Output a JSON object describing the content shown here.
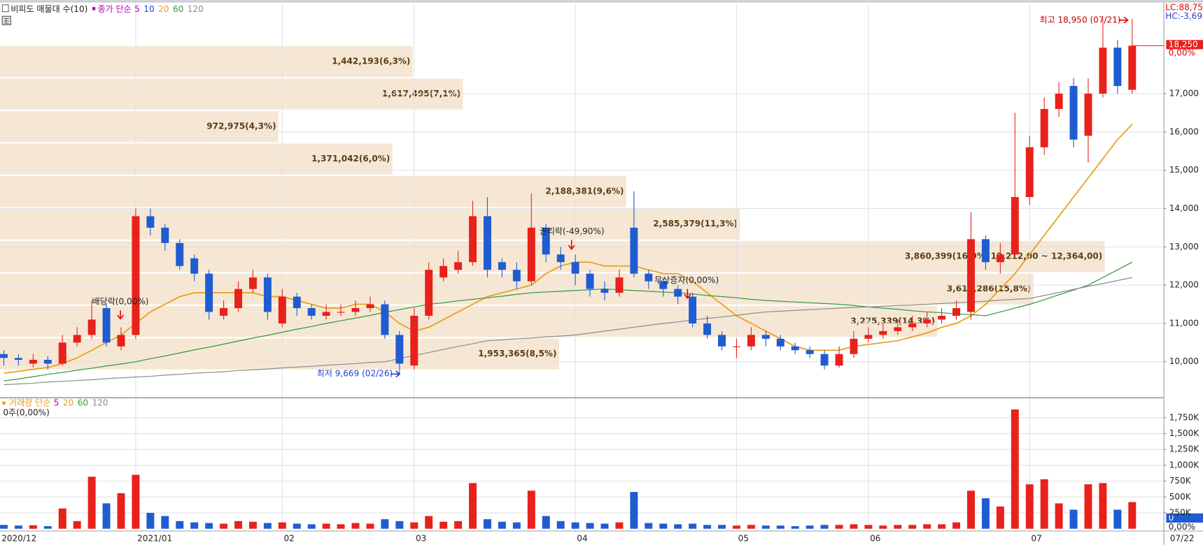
{
  "chart_data": {
    "type": "candlestick",
    "title": "비피도 매물대 수(10)",
    "legend_prefix": "종가 단순",
    "ma_legend": [
      {
        "name": "5",
        "color": "#b400b4"
      },
      {
        "name": "10",
        "color": "#1f3fd1"
      }
    ],
    "categories": [
      "2020/12",
      null,
      null,
      null,
      null,
      null,
      null,
      null,
      null,
      "2021/01",
      null,
      null,
      null,
      null,
      null,
      null,
      null,
      null,
      null,
      "02",
      null,
      null,
      null,
      null,
      null,
      null,
      null,
      null,
      "03",
      null,
      null,
      null,
      null,
      null,
      null,
      null,
      null,
      null,
      null,
      "04",
      null,
      null,
      null,
      null,
      null,
      null,
      null,
      null,
      null,
      null,
      "05",
      null,
      null,
      null,
      null,
      null,
      null,
      null,
      null,
      "06",
      null,
      null,
      null,
      null,
      null,
      null,
      null,
      null,
      null,
      null,
      "07",
      null,
      null,
      null,
      null,
      null,
      null,
      null
    ],
    "x_end_label": "07/22",
    "up_color": "#e8211b",
    "down_color": "#1f5cd1",
    "open": [
      10200,
      10100,
      9950,
      10050,
      9950,
      10500,
      10700,
      11400,
      10400,
      10700,
      13800,
      13500,
      13100,
      12700,
      12300,
      11200,
      11400,
      11900,
      12200,
      11000,
      11700,
      11400,
      11200,
      11300,
      11300,
      11400,
      11500,
      10700,
      9900,
      11200,
      12200,
      12400,
      12600,
      13800,
      12600,
      12400,
      12100,
      13500,
      12800,
      12600,
      12300,
      11900,
      11800,
      13500,
      12300,
      12100,
      11900,
      11700,
      11000,
      10700,
      10400,
      10400,
      10700,
      10600,
      10400,
      10300,
      10200,
      9900,
      10200,
      10600,
      10700,
      10800,
      10900,
      11000,
      11100,
      11200,
      11300,
      13200,
      12600,
      12800,
      14300,
      15600,
      16600,
      17200,
      15900,
      17000,
      18200,
      17100
    ],
    "high": [
      10300,
      10200,
      10200,
      10150,
      10700,
      10900,
      11600,
      11500,
      10900,
      14000,
      14000,
      13600,
      13200,
      12800,
      12400,
      11600,
      12100,
      12400,
      12300,
      11900,
      11800,
      11500,
      11500,
      11500,
      11600,
      11700,
      11600,
      10800,
      11400,
      12600,
      12700,
      12900,
      14200,
      14300,
      12700,
      12600,
      14400,
      13600,
      13000,
      12800,
      12400,
      12100,
      12400,
      14450,
      12400,
      12200,
      12000,
      11800,
      11200,
      10800,
      10600,
      10900,
      10800,
      10700,
      10500,
      10400,
      10300,
      10400,
      10800,
      10900,
      11000,
      11100,
      11200,
      11300,
      11400,
      11600,
      13900,
      13300,
      13100,
      16500,
      15900,
      16900,
      17300,
      17400,
      17400,
      18950,
      18400,
      18950
    ],
    "low": [
      9900,
      9900,
      9850,
      9800,
      9900,
      10400,
      10600,
      10400,
      10300,
      10600,
      13300,
      12900,
      12400,
      12100,
      11100,
      11100,
      11300,
      11800,
      11100,
      10900,
      11200,
      11100,
      11100,
      11200,
      11200,
      11300,
      10600,
      9669,
      9800,
      11100,
      12100,
      12300,
      12500,
      12200,
      12200,
      11900,
      12000,
      12600,
      12400,
      12000,
      11700,
      11600,
      11700,
      12200,
      11900,
      11700,
      11500,
      10900,
      10600,
      10300,
      10100,
      10300,
      10400,
      10300,
      10200,
      10100,
      9800,
      9850,
      10100,
      10500,
      10600,
      10700,
      10800,
      10900,
      11000,
      11100,
      11100,
      12400,
      12300,
      12700,
      14100,
      15400,
      16400,
      15600,
      15200,
      16900,
      17000,
      17000
    ],
    "close": [
      10100,
      10050,
      10050,
      9950,
      10500,
      10700,
      11100,
      10500,
      10700,
      13800,
      13500,
      13100,
      12500,
      12300,
      11300,
      11400,
      11900,
      12200,
      11300,
      11700,
      11400,
      11200,
      11300,
      11300,
      11400,
      11500,
      10700,
      9950,
      11200,
      12400,
      12500,
      12600,
      13800,
      12400,
      12400,
      12100,
      13500,
      12800,
      12600,
      12300,
      11900,
      11800,
      12200,
      12300,
      12100,
      11900,
      11700,
      11000,
      10700,
      10400,
      10400,
      10700,
      10600,
      10400,
      10300,
      10200,
      9900,
      10200,
      10600,
      10700,
      10800,
      10900,
      11000,
      11100,
      11200,
      11400,
      13200,
      12600,
      12800,
      14300,
      15600,
      16600,
      17000,
      15800,
      17000,
      18200,
      17200,
      18250
    ],
    "series": [
      {
        "name": "20",
        "color": "#e6a019",
        "values": [
          9700,
          9750,
          9800,
          9850,
          9950,
          10100,
          10300,
          10500,
          10700,
          11000,
          11300,
          11500,
          11700,
          11800,
          11800,
          11800,
          11800,
          11800,
          11700,
          11700,
          11600,
          11500,
          11400,
          11400,
          11500,
          11500,
          11300,
          11000,
          10800,
          10900,
          11100,
          11300,
          11500,
          11700,
          11800,
          11900,
          12000,
          12300,
          12500,
          12600,
          12600,
          12500,
          12500,
          12500,
          12400,
          12300,
          12300,
          12100,
          11800,
          11500,
          11200,
          11000,
          10800,
          10600,
          10400,
          10300,
          10300,
          10300,
          10400,
          10450,
          10500,
          10550,
          10650,
          10750,
          10900,
          11000,
          11200,
          11500,
          11900,
          12300,
          12800,
          13300,
          13800,
          14300,
          14800,
          15300,
          15800,
          16200
        ]
      },
      {
        "name": "60",
        "color": "#2e9a3a",
        "values": [
          9500,
          9550,
          9610,
          9670,
          9720,
          9780,
          9830,
          9890,
          9940,
          10000,
          10080,
          10150,
          10230,
          10310,
          10380,
          10460,
          10540,
          10620,
          10690,
          10770,
          10850,
          10920,
          11000,
          11070,
          11140,
          11210,
          11290,
          11360,
          11430,
          11500,
          11540,
          11590,
          11630,
          11670,
          11710,
          11760,
          11800,
          11820,
          11840,
          11860,
          11880,
          11900,
          11880,
          11860,
          11840,
          11820,
          11800,
          11770,
          11730,
          11700,
          11670,
          11630,
          11600,
          11580,
          11560,
          11540,
          11520,
          11500,
          11470,
          11430,
          11400,
          11370,
          11330,
          11300,
          11280,
          11250,
          11230,
          11200,
          11300,
          11400,
          11500,
          11620,
          11750,
          11870,
          12000,
          12200,
          12400,
          12600
        ]
      },
      {
        "name": "120",
        "color": "#8c8c8c",
        "values": [
          9400,
          9420,
          9440,
          9470,
          9490,
          9510,
          9530,
          9560,
          9580,
          9600,
          9620,
          9650,
          9670,
          9700,
          9720,
          9740,
          9770,
          9790,
          9810,
          9840,
          9860,
          9880,
          9910,
          9930,
          9950,
          9980,
          10000,
          10080,
          10160,
          10240,
          10320,
          10400,
          10470,
          10550,
          10570,
          10600,
          10620,
          10650,
          10670,
          10700,
          10750,
          10800,
          10850,
          10900,
          10950,
          11000,
          11040,
          11090,
          11130,
          11170,
          11210,
          11260,
          11300,
          11320,
          11340,
          11360,
          11380,
          11400,
          11420,
          11430,
          11450,
          11470,
          11480,
          11500,
          11520,
          11540,
          11560,
          11580,
          11610,
          11630,
          11650,
          11730,
          11810,
          11890,
          11970,
          12040,
          12120,
          12200
        ]
      }
    ],
    "ylim": [
      9080,
      19040
    ],
    "yticks": [
      {
        "value": 10000,
        "label": "10,000"
      },
      {
        "value": 11000,
        "label": "11,000"
      },
      {
        "value": 12000,
        "label": "12,000"
      },
      {
        "value": 13000,
        "label": "13,000"
      },
      {
        "value": 14000,
        "label": "14,000"
      },
      {
        "value": 15000,
        "label": "15,000"
      },
      {
        "value": 16000,
        "label": "16,000"
      },
      {
        "value": 17000,
        "label": "17,000"
      }
    ],
    "grid": true,
    "price_tag": {
      "value": 18250,
      "label": "18,250",
      "change": "0,00%"
    },
    "lc": "LC:88,75",
    "hc": "HC:-3,69",
    "annotations": [
      "배당락(0,00%)",
      "권리락(-49,90%)",
      "무상증자(0,00%)"
    ],
    "high_label": "최고 18,950 (07/21)",
    "low_label": "최저 9,669 (02/26)",
    "profile": {
      "bins": [
        18260,
        17412,
        16564,
        15716,
        14868,
        14020,
        13172,
        12324,
        11476,
        10628,
        9780
      ],
      "values": [
        1442193,
        1617495,
        972975,
        1371042,
        2188381,
        2585379,
        3860399,
        3611286,
        3275339,
        1953365
      ],
      "value_labels": [
        "1,442,193(6,3%)",
        "1,617,495(7,1%)",
        "972,975(4,3%)",
        "1,371,042(6,0%)",
        "2,188,381(9,6%)",
        "2,585,379(11,3%)",
        "3,860,399(16,9%)",
        "3,611,286(15,8%)",
        "3,275,339(14,3%)",
        "1,953,365(8,5%)"
      ],
      "range_label": "12,212,00 ~ 12,364,00)",
      "xlim": [
        0,
        4067000
      ],
      "color": "#f6e7d5"
    },
    "volume": {
      "title": "거래량 단순",
      "ma_legend": [
        {
          "name": "5",
          "color": "#b400b4"
        },
        {
          "name": "20",
          "color": "#e6a019"
        },
        {
          "name": "60",
          "color": "#2e9a3a"
        },
        {
          "name": "120",
          "color": "#8c8c8c"
        }
      ],
      "status": "0주(0,00%)",
      "current": "0",
      "current_change": "0,00%",
      "values": [
        60000,
        50000,
        55000,
        40000,
        320000,
        120000,
        820000,
        400000,
        560000,
        850000,
        250000,
        200000,
        120000,
        100000,
        90000,
        80000,
        120000,
        110000,
        90000,
        100000,
        80000,
        70000,
        80000,
        70000,
        90000,
        80000,
        150000,
        120000,
        100000,
        200000,
        110000,
        120000,
        720000,
        150000,
        110000,
        100000,
        600000,
        200000,
        120000,
        100000,
        90000,
        80000,
        100000,
        580000,
        90000,
        80000,
        70000,
        80000,
        60000,
        60000,
        50000,
        60000,
        50000,
        50000,
        40000,
        50000,
        60000,
        60000,
        70000,
        60000,
        50000,
        60000,
        60000,
        70000,
        70000,
        100000,
        600000,
        480000,
        350000,
        1880000,
        700000,
        780000,
        400000,
        300000,
        700000,
        720000,
        300000,
        420000
      ],
      "ylim": [
        0,
        1920000
      ],
      "yticks": [
        {
          "value": 250000,
          "label": "250K"
        },
        {
          "value": 500000,
          "label": "500K"
        },
        {
          "value": 750000,
          "label": "750K"
        },
        {
          "value": 1000000,
          "label": "1,000K"
        },
        {
          "value": 1250000,
          "label": "1,250K"
        },
        {
          "value": 1500000,
          "label": "1,500K"
        },
        {
          "value": 1750000,
          "label": "1,750K"
        }
      ]
    }
  }
}
